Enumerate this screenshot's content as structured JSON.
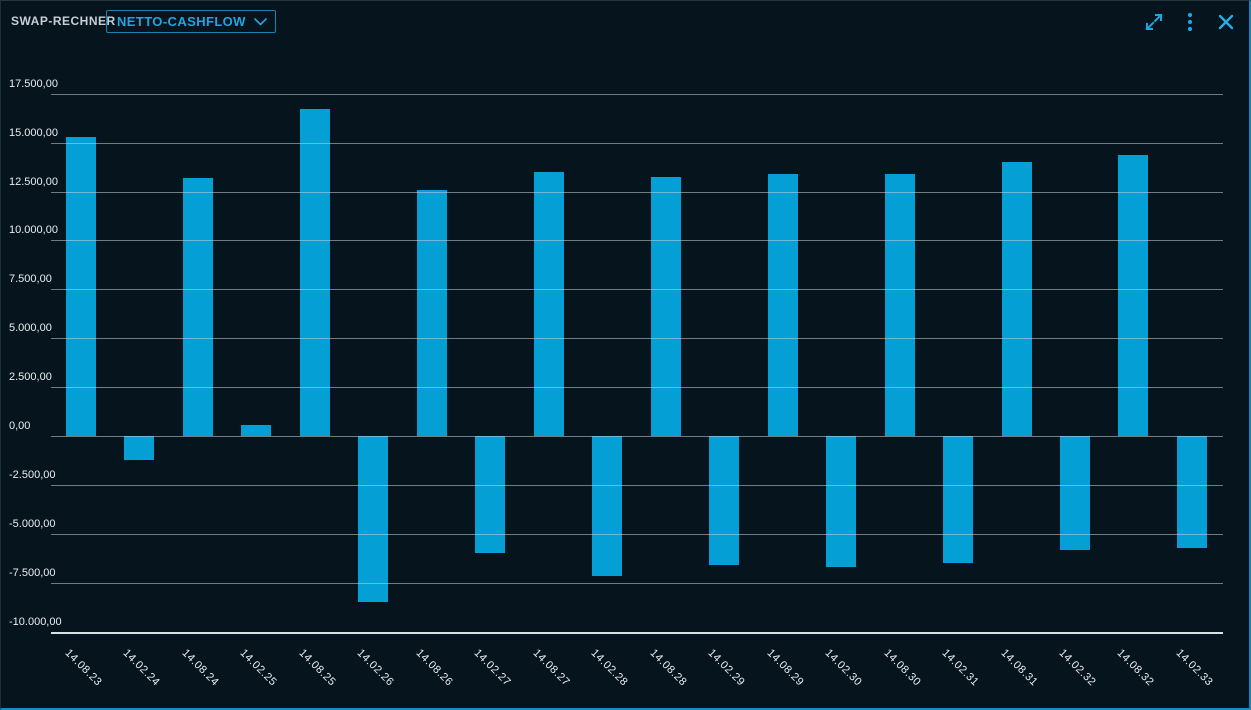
{
  "header": {
    "title": "SWAP-RECHNER",
    "dropdown": {
      "value": "NETTO-CASHFLOW",
      "icon": "chevron-down-icon"
    },
    "actions": {
      "expand": "expand-icon",
      "menu": "kebab-menu-icon",
      "close": "close-icon"
    }
  },
  "colors": {
    "background": "#06141e",
    "bar": "#04a0d5",
    "accent": "#1ea6e0",
    "gridline": "#c6d1d8",
    "axis_line": "#d9e1e6",
    "label_text": "#eaeef1",
    "title_text": "#c7ced4",
    "border_blue": "#1583b4"
  },
  "chart_data": {
    "type": "bar",
    "title": "",
    "xlabel": "",
    "ylabel": "",
    "legend": "none",
    "grid": true,
    "ylim": [
      -10000,
      17500
    ],
    "ytick_step": 2500,
    "yticks": [
      {
        "value": 17500,
        "label": "17.500,00"
      },
      {
        "value": 15000,
        "label": "15.000,00"
      },
      {
        "value": 12500,
        "label": "12.500,00"
      },
      {
        "value": 10000,
        "label": "10.000,00"
      },
      {
        "value": 7500,
        "label": "7.500,00"
      },
      {
        "value": 5000,
        "label": "5.000,00"
      },
      {
        "value": 2500,
        "label": "2.500,00"
      },
      {
        "value": 0,
        "label": "0,00"
      },
      {
        "value": -2500,
        "label": "-2.500,00"
      },
      {
        "value": -5000,
        "label": "-5.000,00"
      },
      {
        "value": -7500,
        "label": "-7.500,00"
      },
      {
        "value": -10000,
        "label": "-10.000,00"
      }
    ],
    "categories": [
      "14.08.23",
      "14.02.24",
      "14.08.24",
      "14.02.25",
      "14.08.25",
      "14.02.26",
      "14.08.26",
      "14.02.27",
      "14.08.27",
      "14.02.28",
      "14.08.28",
      "14.02.29",
      "14.08.29",
      "14.02.30",
      "14.08.30",
      "14.02.31",
      "14.08.31",
      "14.02.32",
      "14.08.32",
      "14.02.33"
    ],
    "values": [
      15300,
      -1250,
      13200,
      560,
      16700,
      -8480,
      12580,
      -6000,
      13500,
      -7150,
      13240,
      -6600,
      13410,
      -6720,
      13410,
      -6470,
      14030,
      -5830,
      14370,
      -5750
    ]
  }
}
